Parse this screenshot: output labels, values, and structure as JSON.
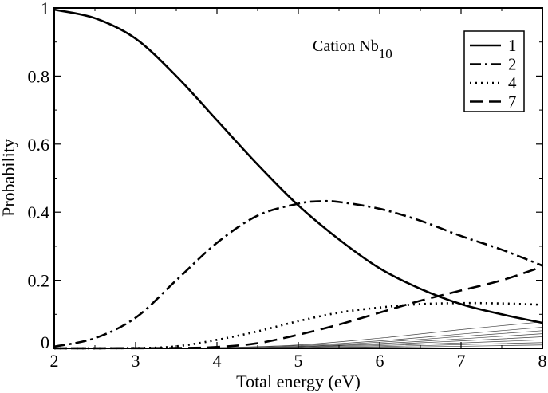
{
  "chart_data": {
    "type": "line",
    "title": "",
    "annotation": {
      "text": "Cation Nb",
      "subscript": "10"
    },
    "xlabel": "Total energy (eV)",
    "ylabel": "Probability",
    "xlim": [
      2,
      8
    ],
    "ylim": [
      0,
      1
    ],
    "xticks": [
      "2",
      "3",
      "4",
      "5",
      "6",
      "7",
      "8"
    ],
    "yticks": [
      "0",
      "0.2",
      "0.4",
      "0.6",
      "0.8",
      "1"
    ],
    "grid": false,
    "legend_position": "top-right",
    "series": [
      {
        "name": "1",
        "style": "solid",
        "x": [
          2,
          2.5,
          3,
          3.5,
          4,
          4.5,
          5,
          5.5,
          6,
          6.5,
          7,
          7.5,
          8
        ],
        "y": [
          0.995,
          0.97,
          0.91,
          0.8,
          0.67,
          0.54,
          0.42,
          0.32,
          0.235,
          0.175,
          0.13,
          0.1,
          0.075
        ]
      },
      {
        "name": "2",
        "style": "dash-dot",
        "x": [
          2,
          2.5,
          3,
          3.5,
          4,
          4.5,
          5,
          5.25,
          5.5,
          6,
          6.5,
          7,
          7.5,
          8
        ],
        "y": [
          0.005,
          0.03,
          0.09,
          0.2,
          0.31,
          0.39,
          0.425,
          0.432,
          0.43,
          0.41,
          0.375,
          0.33,
          0.29,
          0.243
        ]
      },
      {
        "name": "4",
        "style": "dotted",
        "x": [
          2,
          3,
          3.5,
          4,
          4.5,
          5,
          5.5,
          6,
          6.5,
          7,
          7.5,
          8
        ],
        "y": [
          0,
          0.001,
          0.006,
          0.025,
          0.05,
          0.08,
          0.105,
          0.12,
          0.13,
          0.133,
          0.132,
          0.128
        ]
      },
      {
        "name": "7",
        "style": "dashed",
        "x": [
          2,
          3.5,
          4,
          4.5,
          5,
          5.5,
          6,
          6.5,
          7,
          7.5,
          8
        ],
        "y": [
          0,
          0.001,
          0.004,
          0.015,
          0.04,
          0.07,
          0.105,
          0.14,
          0.17,
          0.2,
          0.24
        ]
      }
    ],
    "minor_series": [
      {
        "x": [
          3,
          4,
          5,
          6,
          7,
          8
        ],
        "y": [
          0,
          0.002,
          0.01,
          0.03,
          0.055,
          0.078
        ]
      },
      {
        "x": [
          3,
          4,
          5,
          6,
          7,
          8
        ],
        "y": [
          0,
          0.002,
          0.008,
          0.022,
          0.042,
          0.062
        ]
      },
      {
        "x": [
          3,
          4,
          5,
          6,
          7,
          8
        ],
        "y": [
          0,
          0.001,
          0.006,
          0.018,
          0.035,
          0.052
        ]
      },
      {
        "x": [
          3,
          4,
          5,
          6,
          7,
          8
        ],
        "y": [
          0,
          0.001,
          0.005,
          0.014,
          0.028,
          0.043
        ]
      },
      {
        "x": [
          3,
          4,
          5,
          6,
          7,
          8
        ],
        "y": [
          0,
          0.001,
          0.004,
          0.011,
          0.022,
          0.034
        ]
      },
      {
        "x": [
          3,
          4,
          5,
          6,
          7,
          8
        ],
        "y": [
          0,
          0.001,
          0.003,
          0.008,
          0.016,
          0.025
        ]
      },
      {
        "x": [
          3,
          4,
          5,
          6,
          7,
          8
        ],
        "y": [
          0,
          0,
          0.002,
          0.005,
          0.011,
          0.017
        ]
      },
      {
        "x": [
          3,
          4,
          5,
          6,
          7,
          8
        ],
        "y": [
          0,
          0,
          0.001,
          0.003,
          0.006,
          0.01
        ]
      }
    ]
  }
}
